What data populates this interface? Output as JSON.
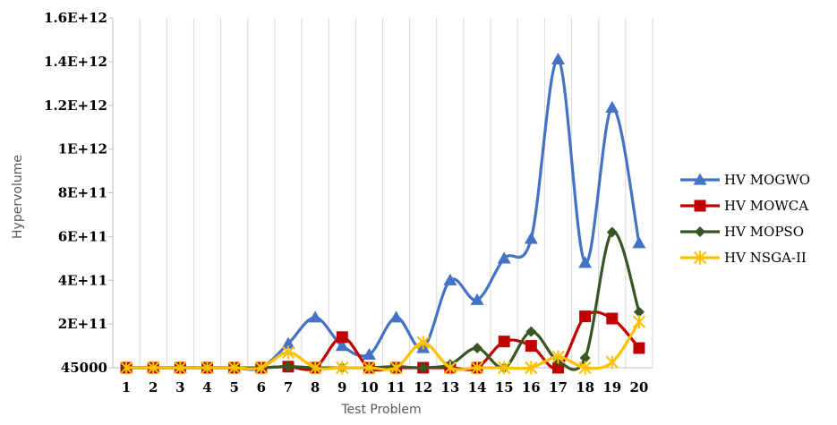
{
  "chart_data": {
    "type": "line",
    "xlabel": "Test Problem",
    "ylabel": "Hypervolume",
    "categories": [
      "1",
      "2",
      "3",
      "4",
      "5",
      "6",
      "7",
      "8",
      "9",
      "10",
      "11",
      "12",
      "13",
      "14",
      "15",
      "16",
      "17",
      "18",
      "19",
      "20"
    ],
    "y_tick_values": [
      45000,
      200000000000,
      400000000000,
      600000000000,
      800000000000,
      1000000000000,
      1200000000000,
      1400000000000,
      1600000000000
    ],
    "y_tick_labels": [
      "45000",
      "2E+11",
      "4E+11",
      "6E+11",
      "8E+11",
      "1E+12",
      "1.2E+12",
      "1.4E+12",
      "1.6E+12"
    ],
    "ylim": [
      0,
      1600000000000
    ],
    "grid": "vertical",
    "legend_position": "right",
    "series": [
      {
        "name": "HV MOGWO",
        "color": "#4472C4",
        "marker": "triangle",
        "values": [
          0,
          0,
          0,
          0,
          0,
          0,
          110000000000,
          230000000000,
          100000000000,
          60000000000,
          230000000000,
          90000000000,
          400000000000,
          310000000000,
          500000000000,
          590000000000,
          1410000000000,
          480000000000,
          1190000000000,
          570000000000
        ]
      },
      {
        "name": "HV MOWCA",
        "color": "#C00000",
        "marker": "square",
        "values": [
          0,
          0,
          0,
          0,
          0,
          0,
          5000000000,
          0,
          140000000000,
          0,
          0,
          0,
          0,
          0,
          120000000000,
          100000000000,
          0,
          235000000000,
          225000000000,
          90000000000
        ]
      },
      {
        "name": "HV MOPSO",
        "color": "#375623",
        "marker": "diamond",
        "values": [
          0,
          0,
          0,
          0,
          0,
          0,
          5000000000,
          0,
          0,
          0,
          5000000000,
          0,
          15000000000,
          90000000000,
          0,
          165000000000,
          30000000000,
          45000000000,
          620000000000,
          255000000000
        ]
      },
      {
        "name": "HV NSGA-II",
        "color": "#FFC000",
        "marker": "star",
        "values": [
          0,
          0,
          0,
          0,
          0,
          0,
          70000000000,
          0,
          0,
          0,
          0,
          115000000000,
          0,
          0,
          0,
          0,
          50000000000,
          0,
          25000000000,
          210000000000
        ]
      }
    ]
  }
}
